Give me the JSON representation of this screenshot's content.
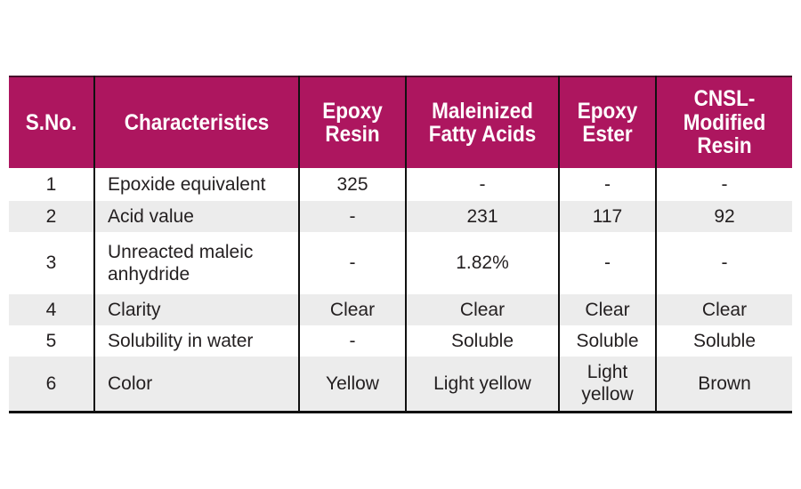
{
  "colors": {
    "header_bg": "#ad165f",
    "header_top_line": "#47102b",
    "stripe_bg": "#ececec",
    "border": "#111111",
    "header_text": "#ffffff",
    "body_text": "#231f20",
    "page_bg": "#ffffff"
  },
  "table": {
    "columns": [
      "S.No.",
      "Characteristics",
      "Epoxy Resin",
      "Maleinized Fatty Acids",
      "Epoxy Ester",
      "CNSL-Modified Resin"
    ],
    "rows": [
      {
        "sno": "1",
        "characteristic": "Epoxide equivalent",
        "epoxy_resin": "325",
        "maleinized_fatty_acids": "-",
        "epoxy_ester": "-",
        "cnsl_modified_resin": "-"
      },
      {
        "sno": "2",
        "characteristic": "Acid value",
        "epoxy_resin": "-",
        "maleinized_fatty_acids": "231",
        "epoxy_ester": "117",
        "cnsl_modified_resin": "92"
      },
      {
        "sno": "3",
        "characteristic": "Unreacted maleic anhydride",
        "epoxy_resin": "-",
        "maleinized_fatty_acids": "1.82%",
        "epoxy_ester": "-",
        "cnsl_modified_resin": "-"
      },
      {
        "sno": "4",
        "characteristic": "Clarity",
        "epoxy_resin": "Clear",
        "maleinized_fatty_acids": "Clear",
        "epoxy_ester": "Clear",
        "cnsl_modified_resin": "Clear"
      },
      {
        "sno": "5",
        "characteristic": "Solubility in water",
        "epoxy_resin": "-",
        "maleinized_fatty_acids": "Soluble",
        "epoxy_ester": "Soluble",
        "cnsl_modified_resin": "Soluble"
      },
      {
        "sno": "6",
        "characteristic": "Color",
        "epoxy_resin": "Yellow",
        "maleinized_fatty_acids": "Light yellow",
        "epoxy_ester": "Light yellow",
        "cnsl_modified_resin": "Brown"
      }
    ]
  }
}
